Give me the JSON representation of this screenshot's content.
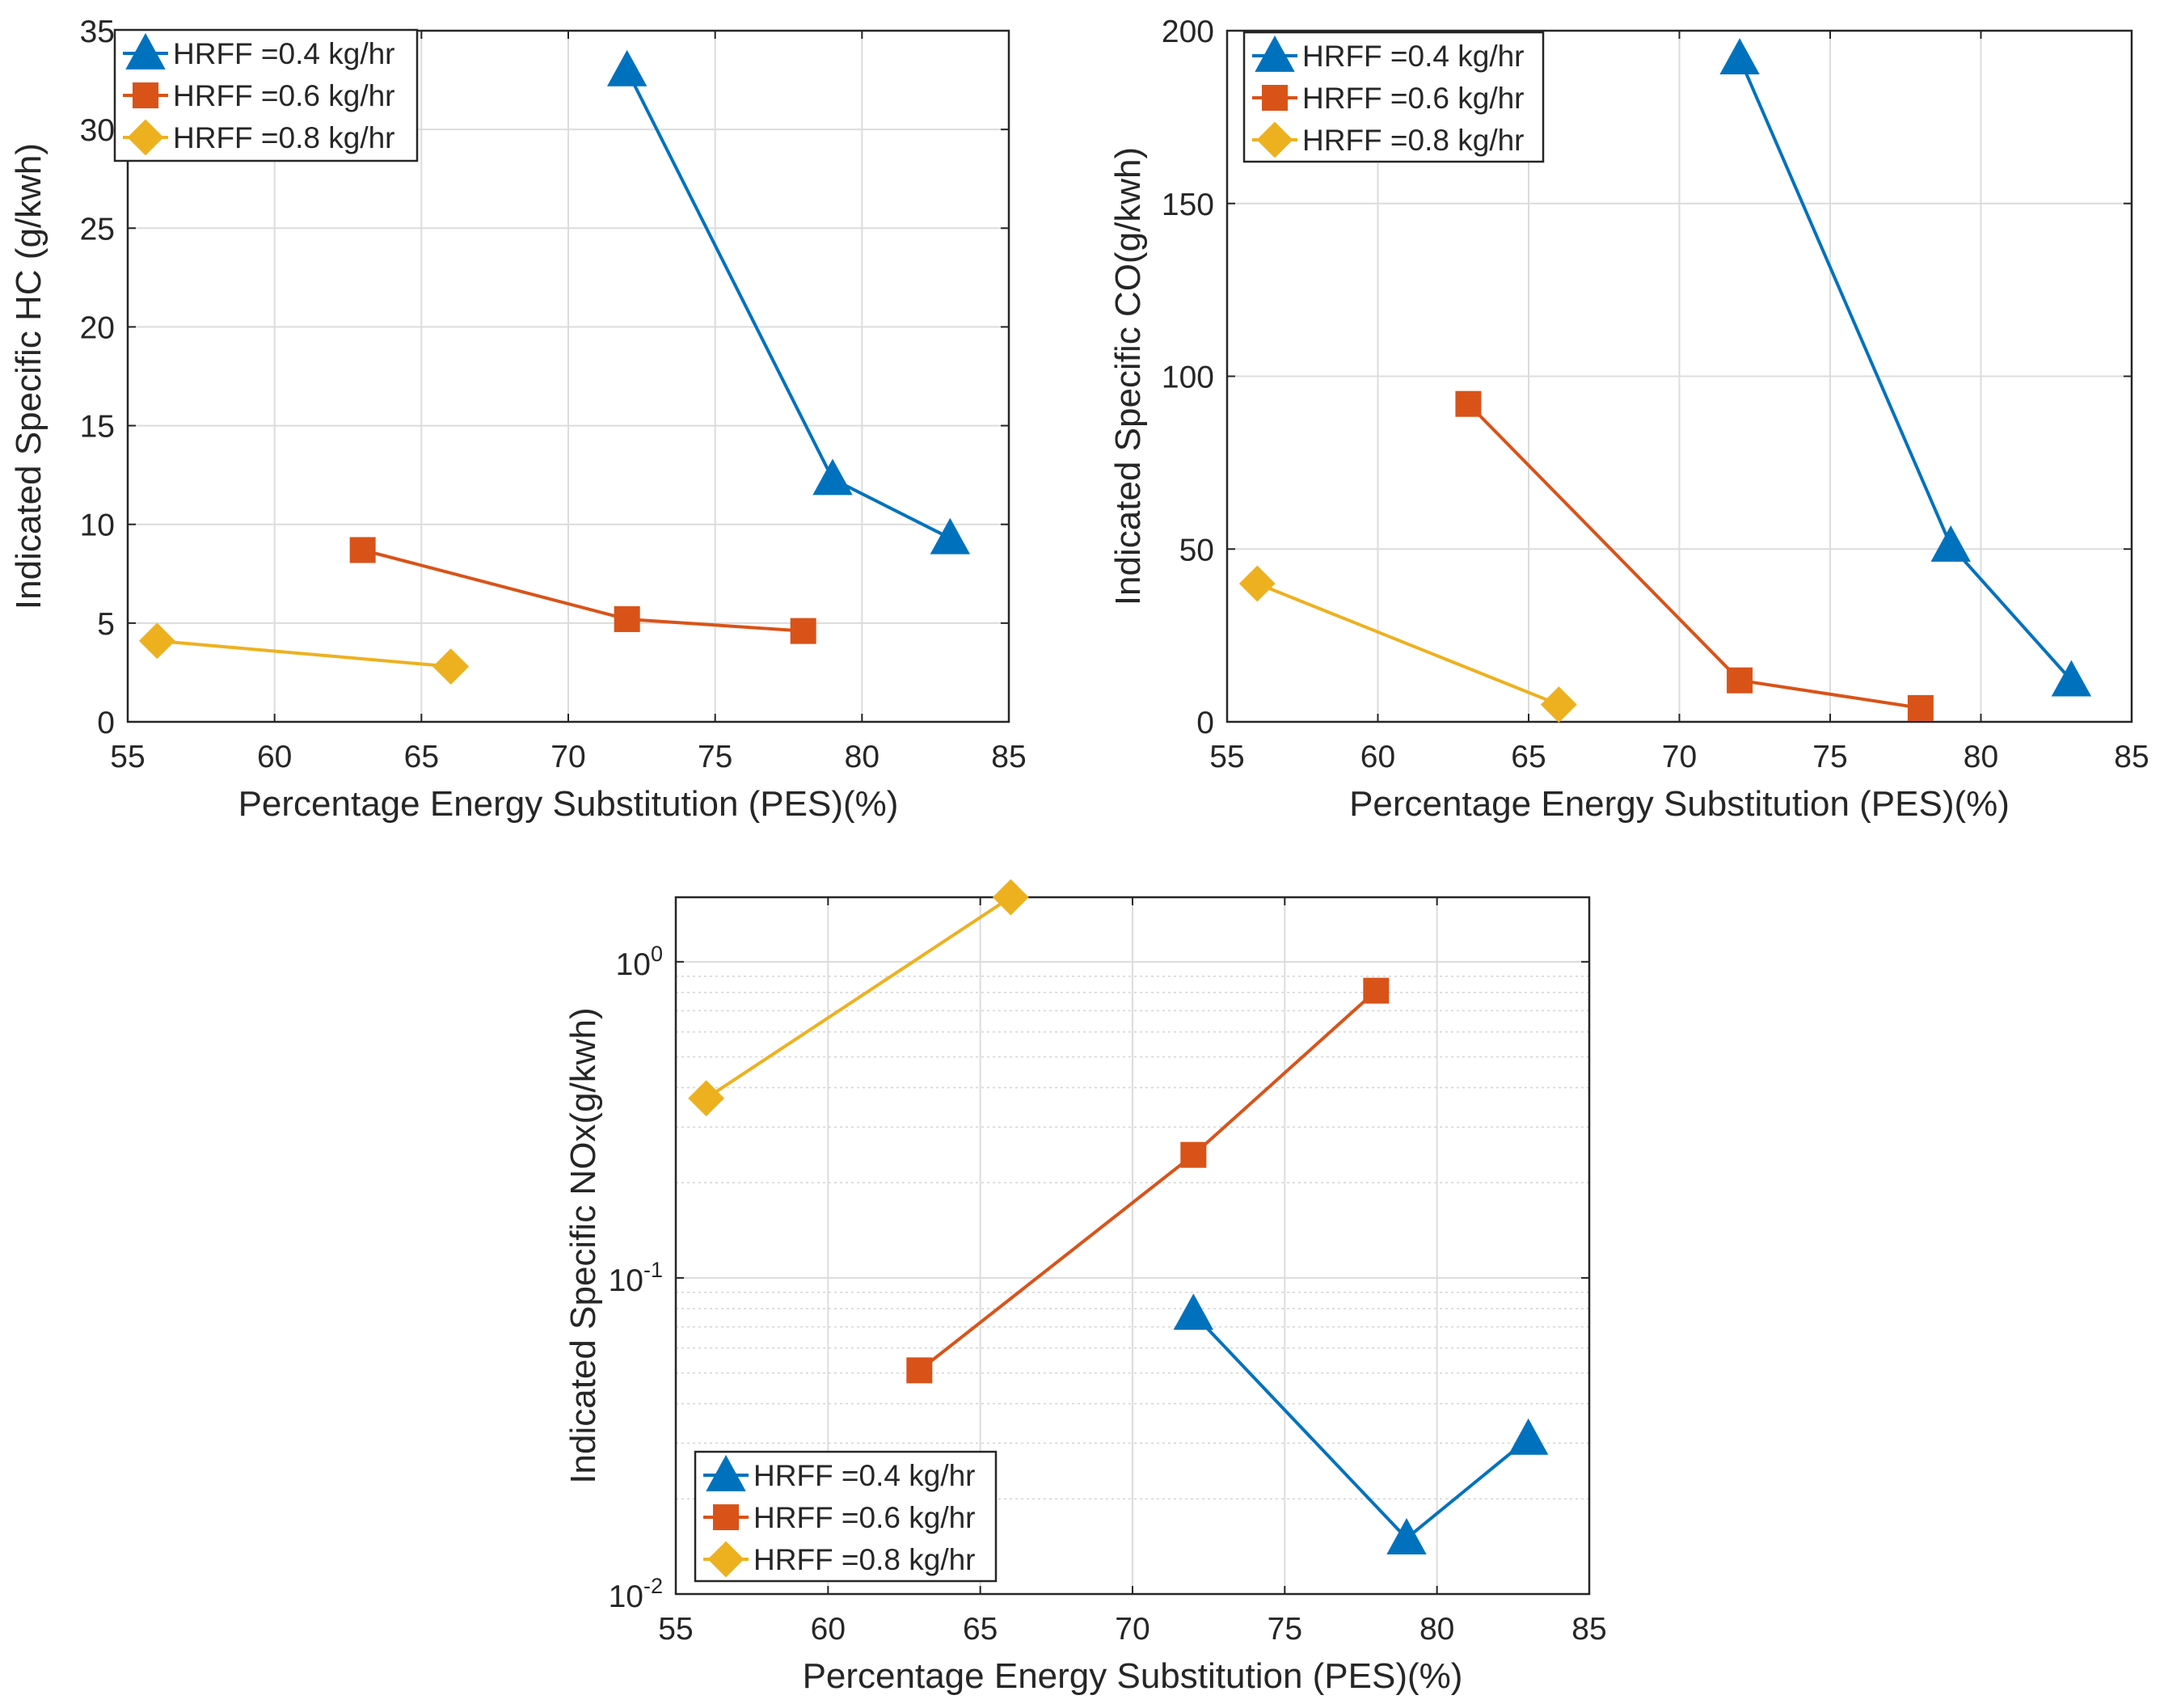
{
  "chart_data": [
    {
      "id": "hc",
      "type": "line",
      "yscale": "linear",
      "xlabel": "Percentage Energy Substitution (PES)(%)",
      "ylabel": "Indicated Specific HC (g/kwh)",
      "xlim": [
        55,
        85
      ],
      "ylim": [
        0,
        35
      ],
      "xticks": [
        55,
        60,
        65,
        70,
        75,
        80,
        85
      ],
      "yticks": [
        0,
        5,
        10,
        15,
        20,
        25,
        30,
        35
      ],
      "legend_loc": "top-left",
      "series": [
        {
          "name": "HRFF =0.4 kg/hr",
          "marker": "triangle",
          "color": "#0072BD",
          "x": [
            72,
            79,
            83
          ],
          "y": [
            33.0,
            12.3,
            9.3
          ]
        },
        {
          "name": "HRFF =0.6 kg/hr",
          "marker": "square",
          "color": "#D95319",
          "x": [
            63,
            72,
            78
          ],
          "y": [
            8.7,
            5.2,
            4.6
          ]
        },
        {
          "name": "HRFF =0.8 kg/hr",
          "marker": "diamond",
          "color": "#EDB120",
          "x": [
            56,
            66
          ],
          "y": [
            4.1,
            2.8
          ]
        }
      ]
    },
    {
      "id": "co",
      "type": "line",
      "yscale": "linear",
      "xlabel": "Percentage Energy Substitution (PES)(%)",
      "ylabel": "Indicated Specific CO(g/kwh)",
      "xlim": [
        55,
        85
      ],
      "ylim": [
        0,
        200
      ],
      "xticks": [
        55,
        60,
        65,
        70,
        75,
        80,
        85
      ],
      "yticks": [
        0,
        50,
        100,
        150,
        200
      ],
      "legend_loc": "top-left",
      "series": [
        {
          "name": "HRFF =0.4 kg/hr",
          "marker": "triangle",
          "color": "#0072BD",
          "x": [
            72,
            79,
            83
          ],
          "y": [
            192,
            51,
            12
          ]
        },
        {
          "name": "HRFF =0.6 kg/hr",
          "marker": "square",
          "color": "#D95319",
          "x": [
            63,
            72,
            78
          ],
          "y": [
            92,
            12,
            4
          ]
        },
        {
          "name": "HRFF =0.8 kg/hr",
          "marker": "diamond",
          "color": "#EDB120",
          "x": [
            56,
            66
          ],
          "y": [
            40,
            5
          ]
        }
      ]
    },
    {
      "id": "nox",
      "type": "line",
      "yscale": "log",
      "xlabel": "Percentage Energy Substitution (PES)(%)",
      "ylabel": "Indicated Specific NOx(g/kwh)",
      "xlim": [
        55,
        85
      ],
      "ylim": [
        0.01,
        1.6
      ],
      "xticks": [
        55,
        60,
        65,
        70,
        75,
        80,
        85
      ],
      "ylog_ticks": [
        {
          "base": "10",
          "exp": "-2",
          "value": 0.01
        },
        {
          "base": "10",
          "exp": "-1",
          "value": 0.1
        },
        {
          "base": "10",
          "exp": "0",
          "value": 1
        }
      ],
      "legend_loc": "bottom-left",
      "series": [
        {
          "name": "HRFF =0.4 kg/hr",
          "marker": "triangle",
          "color": "#0072BD",
          "x": [
            72,
            79,
            83
          ],
          "y": [
            0.077,
            0.015,
            0.031
          ]
        },
        {
          "name": "HRFF =0.6 kg/hr",
          "marker": "square",
          "color": "#D95319",
          "x": [
            63,
            72,
            78
          ],
          "y": [
            0.051,
            0.245,
            0.81
          ]
        },
        {
          "name": "HRFF =0.8 kg/hr",
          "marker": "diamond",
          "color": "#EDB120",
          "x": [
            56,
            66
          ],
          "y": [
            0.37,
            1.6
          ]
        }
      ]
    }
  ]
}
